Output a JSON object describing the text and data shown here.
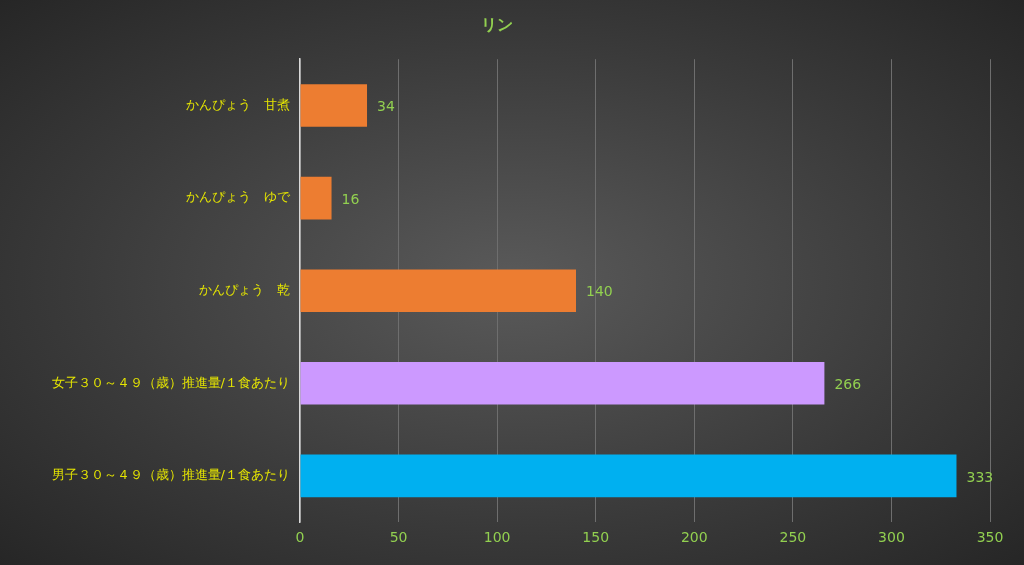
{
  "chart_data": {
    "type": "bar",
    "orientation": "horizontal",
    "title": "リン",
    "categories": [
      "かんぴょう　甘煮",
      "かんぴょう　ゆで",
      "かんぴょう　乾",
      "女子３０～４９（歳）推進量/１食あたり",
      "男子３０～４９（歳）推進量/１食あたり"
    ],
    "values": [
      34,
      16,
      140,
      266,
      333
    ],
    "colors": [
      "#ed7d31",
      "#ed7d31",
      "#ed7d31",
      "#cc99ff",
      "#00b0f0"
    ],
    "xlim": [
      0,
      350
    ],
    "xticks": [
      0,
      50,
      100,
      150,
      200,
      250,
      300,
      350
    ],
    "grid": "x",
    "data_labels": true,
    "legend": false
  }
}
